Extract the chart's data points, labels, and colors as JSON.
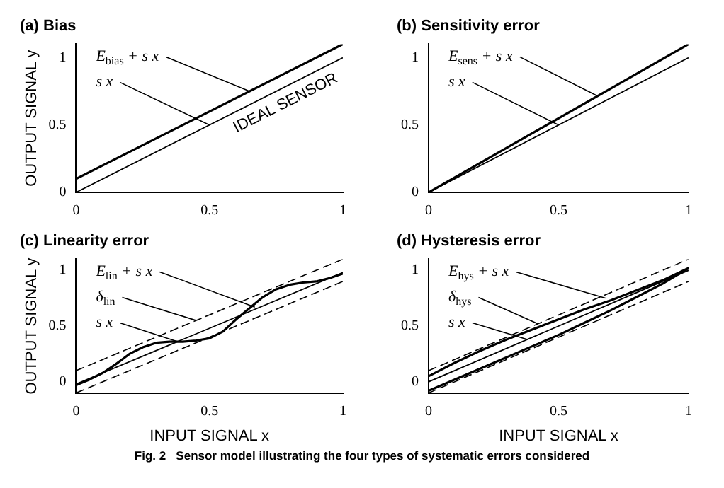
{
  "chart_data": [
    {
      "type": "line",
      "title": "(a) Bias",
      "ylabel": "OUTPUT SIGNAL y",
      "xlim": [
        0,
        1
      ],
      "ylim": [
        0,
        1.1
      ],
      "xticks": [
        0,
        0.5,
        1
      ],
      "yticks": [
        0,
        0.5,
        1
      ],
      "grid": false,
      "legend": false,
      "marker": "none",
      "series": [
        {
          "color": "#000000",
          "x": [
            0,
            1
          ],
          "values": [
            0.1,
            1.1
          ]
        },
        {
          "color": "#000000",
          "x": [
            0,
            1
          ],
          "values": [
            0,
            1
          ]
        }
      ],
      "annotations": [
        {
          "text": "E$_{bias}$ + s x",
          "x": 0.65,
          "y": 0.75
        },
        {
          "text": "s x",
          "x": 0.5,
          "y": 0.5
        },
        "IDEAL SENSOR"
      ]
    },
    {
      "type": "line",
      "title": "(b) Sensitivity error",
      "xlim": [
        0,
        1
      ],
      "ylim": [
        0,
        1.1
      ],
      "xticks": [
        0,
        0.5,
        1
      ],
      "yticks": [
        0,
        0.5,
        1
      ],
      "grid": false,
      "legend": false,
      "marker": "none",
      "series": [
        {
          "color": "#000000",
          "x": [
            0,
            1
          ],
          "values": [
            0,
            1.1
          ]
        },
        {
          "color": "#000000",
          "x": [
            0,
            1
          ],
          "values": [
            0,
            1
          ]
        }
      ],
      "annotations": [
        {
          "text": "E$_{sens}$ + s x",
          "x": 0.65,
          "y": 0.715
        },
        {
          "text": "s x",
          "x": 0.5,
          "y": 0.5
        }
      ]
    },
    {
      "type": "line",
      "title": "(c) Linearity error",
      "xlabel": "INPUT SIGNAL x",
      "ylabel": "OUTPUT SIGNAL y",
      "xlim": [
        0,
        1
      ],
      "ylim": [
        -0.1,
        1.1
      ],
      "xticks": [
        0,
        0.5,
        1
      ],
      "yticks": [
        0,
        0.5,
        1
      ],
      "grid": false,
      "legend": false,
      "marker": "none",
      "series": [
        {
          "color": "#000000",
          "x": [
            0,
            0.05,
            0.1,
            0.15,
            0.2,
            0.25,
            0.3,
            0.35,
            0.4,
            0.45,
            0.5,
            0.55,
            0.6,
            0.65,
            0.7,
            0.75,
            0.8,
            0.85,
            0.9,
            0.95,
            1
          ],
          "values": [
            -0.03,
            0.02,
            0.08,
            0.16,
            0.25,
            0.31,
            0.35,
            0.36,
            0.36,
            0.37,
            0.39,
            0.45,
            0.56,
            0.66,
            0.76,
            0.83,
            0.87,
            0.89,
            0.9,
            0.93,
            0.97
          ]
        },
        {
          "color": "#000000",
          "line_style": "dashed",
          "x": [
            0,
            1
          ],
          "values": [
            0.1,
            1.1
          ]
        },
        {
          "color": "#000000",
          "line_style": "dashed",
          "x": [
            0,
            1
          ],
          "values": [
            -0.1,
            0.9
          ]
        },
        {
          "color": "#000000",
          "x": [
            0,
            1
          ],
          "values": [
            -0.02,
            0.98
          ]
        }
      ],
      "annotations": [
        {
          "text": "E$_{lin}$ + s x",
          "x": 0.67,
          "y": 0.67
        },
        {
          "text": "δ$_{lin}$",
          "x": 0.45,
          "y": 0.55
        },
        {
          "text": "s x",
          "x": 0.38,
          "y": 0.36
        }
      ]
    },
    {
      "type": "line",
      "title": "(d) Hysteresis error",
      "xlabel": "INPUT SIGNAL x",
      "xlim": [
        0,
        1
      ],
      "ylim": [
        -0.1,
        1.1
      ],
      "xticks": [
        0,
        0.5,
        1
      ],
      "yticks": [
        0,
        0.5,
        1
      ],
      "grid": false,
      "legend": false,
      "marker": "none",
      "series": [
        {
          "color": "#000000",
          "x": [
            0,
            0.1,
            0.2,
            0.3,
            0.4,
            0.5,
            0.6,
            0.7,
            0.8,
            0.9,
            1,
            0.9,
            0.8,
            0.7,
            0.6,
            0.5,
            0.4,
            0.3,
            0.2,
            0.1,
            0
          ],
          "values": [
            0.05,
            0.17,
            0.28,
            0.38,
            0.47,
            0.56,
            0.65,
            0.73,
            0.82,
            0.91,
            1.02,
            0.88,
            0.76,
            0.64,
            0.53,
            0.42,
            0.32,
            0.22,
            0.12,
            0.02,
            -0.08
          ]
        },
        {
          "color": "#000000",
          "line_style": "dashed",
          "x": [
            0,
            1
          ],
          "values": [
            0.1,
            1.1
          ]
        },
        {
          "color": "#000000",
          "line_style": "dashed",
          "x": [
            0,
            1
          ],
          "values": [
            -0.1,
            0.9
          ]
        },
        {
          "color": "#000000",
          "x": [
            0,
            1
          ],
          "values": [
            0,
            1
          ]
        }
      ],
      "annotations": [
        {
          "text": "E$_{hys}$ + s x",
          "x": 0.68,
          "y": 0.75
        },
        {
          "text": "δ$_{hys}$",
          "x": 0.42,
          "y": 0.52
        },
        {
          "text": "s x",
          "x": 0.38,
          "y": 0.38
        },
        "Fig. 2   Sensor model illustrating the four types of systematic errors considered"
      ]
    }
  ]
}
